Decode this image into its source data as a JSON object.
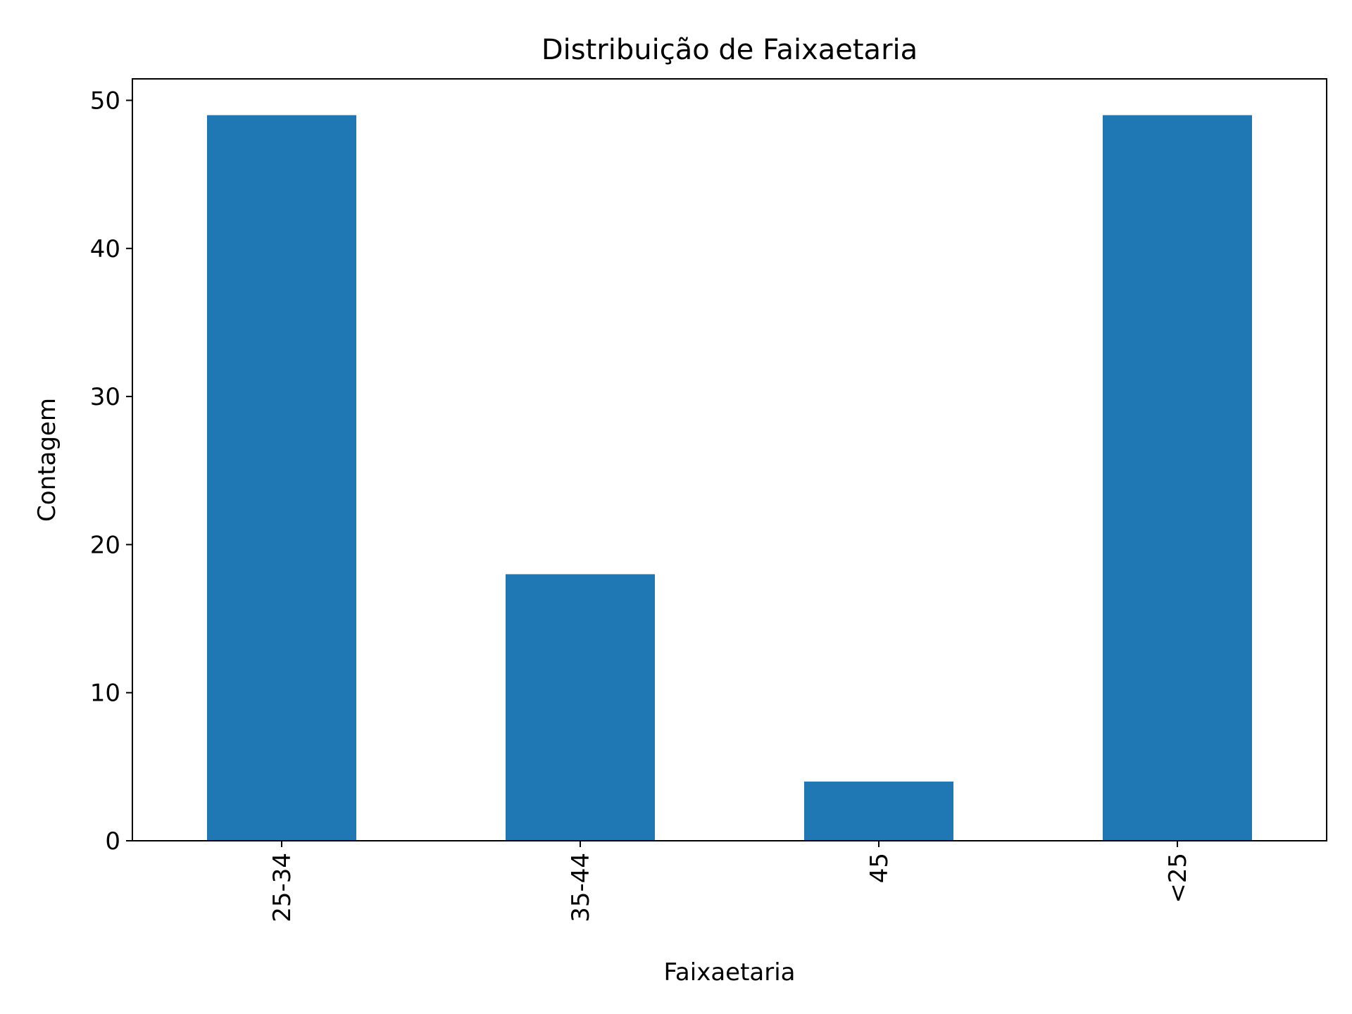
{
  "chart_data": {
    "type": "bar",
    "title": "Distribuição de Faixaetaria",
    "xlabel": "Faixaetaria",
    "ylabel": "Contagem",
    "categories": [
      "25-34",
      "35-44",
      "45",
      "<25"
    ],
    "values": [
      49,
      18,
      4,
      49
    ],
    "ylim": [
      0,
      51.45
    ],
    "yticks": [
      0,
      10,
      20,
      30,
      40,
      50
    ],
    "xtick_rotation": 90,
    "grid": false,
    "legend": "none",
    "bar_color": "#1f77b4"
  }
}
